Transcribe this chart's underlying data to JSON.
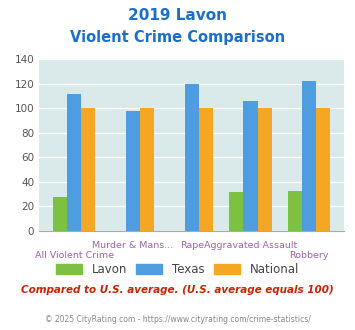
{
  "title_line1": "2019 Lavon",
  "title_line2": "Violent Crime Comparison",
  "categories": [
    "All Violent Crime",
    "Murder & Mans...",
    "Rape",
    "Aggravated Assault",
    "Robbery"
  ],
  "lavon": [
    28,
    0,
    0,
    32,
    33
  ],
  "texas": [
    112,
    98,
    120,
    106,
    122
  ],
  "national": [
    100,
    100,
    100,
    100,
    100
  ],
  "lavon_color": "#7dc142",
  "texas_color": "#4d9de0",
  "national_color": "#f5a623",
  "title_color": "#1a6fcc",
  "xtick_color": "#9966aa",
  "bg_color": "#daeaea",
  "note_text": "Compared to U.S. average. (U.S. average equals 100)",
  "footer_text": "© 2025 CityRating.com - https://www.cityrating.com/crime-statistics/",
  "ylim": [
    0,
    140
  ],
  "yticks": [
    0,
    20,
    40,
    60,
    80,
    100,
    120,
    140
  ]
}
